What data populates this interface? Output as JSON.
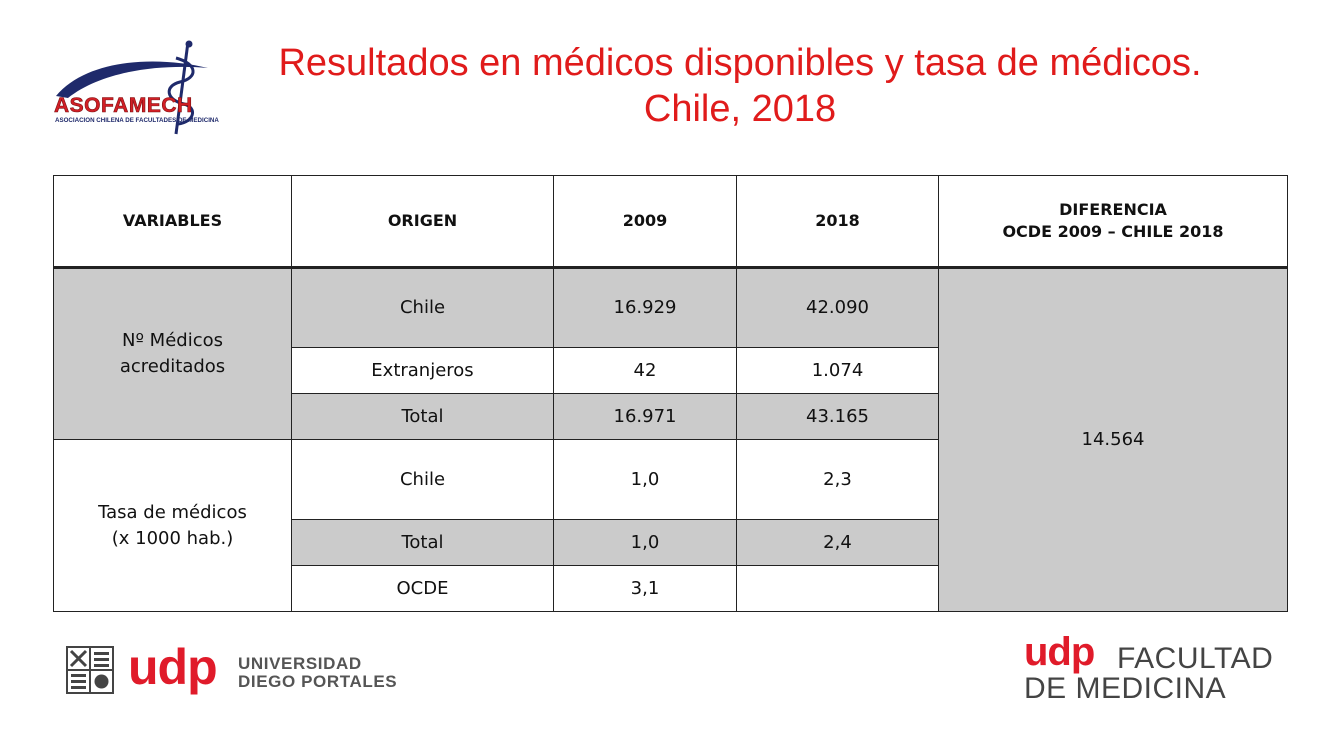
{
  "title": {
    "line1": "Resultados en médicos disponibles y tasa de médicos.",
    "line2": "Chile, 2018"
  },
  "logos": {
    "asofamech": {
      "name": "ASOFAMECH",
      "subtitle": "ASOCIACION CHILENA DE FACULTADES DE MEDICINA"
    },
    "udp": {
      "mark": "udp",
      "name_line1": "UNIVERSIDAD",
      "name_line2": "DIEGO PORTALES"
    },
    "udp_medicina": {
      "mark": "udp",
      "line1": "FACULTAD",
      "line2": "DE MEDICINA"
    }
  },
  "colors": {
    "title": "#e01b1b",
    "brand_red": "#e01b2a",
    "cell_gray": "#cbcbcb"
  },
  "table": {
    "headers": {
      "variables": "VARIABLES",
      "origen": "ORIGEN",
      "y2009": "2009",
      "y2018": "2018",
      "diferencia_line1": "DIFERENCIA",
      "diferencia_line2": "OCDE 2009 – CHILE 2018"
    },
    "group1": {
      "label_line1": "Nº Médicos",
      "label_line2": "acreditados",
      "rows": [
        {
          "origen": "Chile",
          "y2009": "16.929",
          "y2018": "42.090"
        },
        {
          "origen": "Extranjeros",
          "y2009": "42",
          "y2018": "1.074"
        },
        {
          "origen": "Total",
          "y2009": "16.971",
          "y2018": "43.165"
        }
      ]
    },
    "group2": {
      "label_line1": "Tasa de médicos",
      "label_line2": "(x 1000 hab.)",
      "rows": [
        {
          "origen": "Chile",
          "y2009": "1,0",
          "y2018": "2,3"
        },
        {
          "origen": "Total",
          "y2009": "1,0",
          "y2018": "2,4"
        },
        {
          "origen": "OCDE",
          "y2009": "3,1",
          "y2018": ""
        }
      ]
    },
    "diferencia_value": "14.564"
  }
}
